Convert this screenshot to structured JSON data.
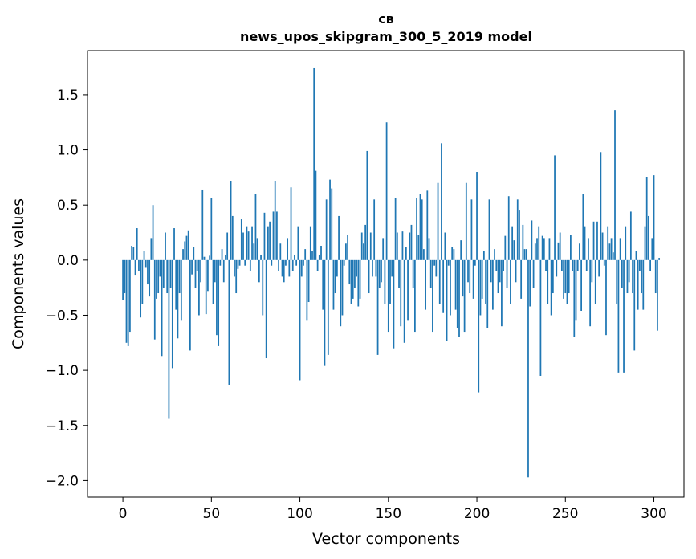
{
  "chart_data": {
    "type": "bar",
    "title": "св",
    "subtitle": "news_upos_skipgram_300_5_2019 model",
    "xlabel": "Vector components",
    "ylabel": "Components values",
    "xlim": [
      -20,
      317
    ],
    "ylim": [
      -2.15,
      1.9
    ],
    "xticks": [
      0,
      50,
      100,
      150,
      200,
      250,
      300
    ],
    "xtick_labels": [
      "0",
      "50",
      "100",
      "150",
      "200",
      "250",
      "300"
    ],
    "yticks": [
      -2.0,
      -1.5,
      -1.0,
      -0.5,
      0.0,
      0.5,
      1.0,
      1.5
    ],
    "ytick_labels": [
      "−2.0",
      "−1.5",
      "−1.0",
      "−0.5",
      "0.0",
      "0.5",
      "1.0",
      "1.5"
    ],
    "bar_color": "#1f77b4",
    "grid": false,
    "values": [
      -0.36,
      -0.3,
      -0.75,
      -0.78,
      -0.65,
      0.13,
      0.12,
      -0.14,
      0.29,
      -0.1,
      -0.52,
      -0.4,
      0.08,
      -0.07,
      -0.22,
      -0.33,
      0.2,
      0.5,
      -0.72,
      -0.35,
      -0.3,
      -0.15,
      -0.87,
      -0.25,
      0.25,
      -0.3,
      -1.44,
      -0.25,
      -0.98,
      0.29,
      -0.45,
      -0.71,
      -0.3,
      -0.55,
      0.1,
      0.17,
      0.22,
      0.27,
      -0.82,
      -0.13,
      0.12,
      -0.25,
      -0.1,
      -0.5,
      -0.2,
      0.64,
      0.03,
      -0.49,
      -0.28,
      0.04,
      0.56,
      -0.4,
      -0.2,
      -0.68,
      -0.78,
      -0.05,
      0.1,
      -0.2,
      0.05,
      0.25,
      -1.13,
      0.72,
      0.4,
      -0.15,
      -0.3,
      -0.08,
      -0.05,
      0.37,
      0.25,
      -0.05,
      0.3,
      0.26,
      -0.1,
      0.3,
      0.15,
      0.6,
      0.2,
      -0.2,
      0.05,
      -0.5,
      0.43,
      -0.89,
      0.3,
      0.35,
      -0.05,
      0.44,
      0.72,
      0.44,
      -0.1,
      0.15,
      -0.15,
      -0.2,
      -0.05,
      0.2,
      -0.15,
      0.66,
      -0.1,
      0.05,
      -0.05,
      0.3,
      -1.09,
      -0.15,
      -0.05,
      0.1,
      -0.55,
      -0.38,
      0.3,
      0.08,
      1.74,
      0.81,
      -0.1,
      0.05,
      0.13,
      -0.45,
      -0.96,
      0.55,
      -0.86,
      0.73,
      0.65,
      -0.45,
      -0.3,
      -0.15,
      0.4,
      -0.6,
      -0.5,
      -0.05,
      0.15,
      0.23,
      -0.22,
      -0.4,
      -0.35,
      -0.25,
      -0.15,
      -0.42,
      -0.35,
      0.25,
      0.15,
      0.32,
      0.99,
      -0.3,
      0.25,
      -0.15,
      0.55,
      -0.15,
      -0.86,
      -0.25,
      -0.2,
      0.2,
      -0.4,
      1.25,
      -0.65,
      -0.4,
      -0.15,
      -0.8,
      0.56,
      0.25,
      -0.25,
      -0.6,
      0.26,
      -0.75,
      0.12,
      -0.55,
      0.25,
      0.32,
      -0.25,
      -0.65,
      0.56,
      0.23,
      0.6,
      0.55,
      0.1,
      -0.45,
      0.63,
      0.2,
      -0.25,
      -0.65,
      -0.05,
      -0.15,
      0.7,
      -0.4,
      1.06,
      -0.48,
      0.25,
      -0.73,
      -0.05,
      -0.5,
      0.12,
      0.1,
      -0.45,
      -0.62,
      -0.7,
      0.18,
      -0.33,
      -0.65,
      0.7,
      -0.2,
      -0.3,
      0.55,
      -0.35,
      -0.05,
      0.8,
      -1.2,
      -0.5,
      -0.35,
      0.08,
      -0.4,
      -0.62,
      0.55,
      -0.2,
      -0.45,
      0.1,
      -0.1,
      -0.3,
      -0.2,
      -0.6,
      -0.1,
      0.22,
      -0.25,
      0.58,
      -0.4,
      0.3,
      0.18,
      -0.2,
      0.55,
      0.45,
      -0.35,
      0.32,
      0.1,
      0.1,
      -1.97,
      -0.42,
      0.36,
      -0.25,
      0.15,
      0.2,
      0.3,
      -1.05,
      0.22,
      0.2,
      -0.1,
      -0.4,
      0.2,
      -0.5,
      -0.3,
      0.95,
      -0.15,
      0.16,
      0.25,
      -0.1,
      -0.35,
      -0.3,
      -0.4,
      -0.3,
      0.23,
      -0.1,
      -0.7,
      -0.55,
      -0.1,
      0.15,
      -0.46,
      0.6,
      0.3,
      -0.1,
      0.2,
      -0.6,
      -0.2,
      0.35,
      -0.4,
      0.35,
      -0.15,
      0.98,
      0.25,
      -0.05,
      -0.68,
      0.3,
      0.15,
      0.2,
      0.07,
      1.36,
      -0.4,
      -1.02,
      0.2,
      -0.25,
      -1.02,
      0.3,
      -0.3,
      -0.2,
      0.44,
      -0.3,
      -0.82,
      0.08,
      -0.45,
      -0.1,
      -0.3,
      -0.45,
      0.3,
      0.75,
      0.4,
      -0.1,
      0.2,
      0.77,
      -0.3,
      -0.64,
      0.02
    ]
  }
}
